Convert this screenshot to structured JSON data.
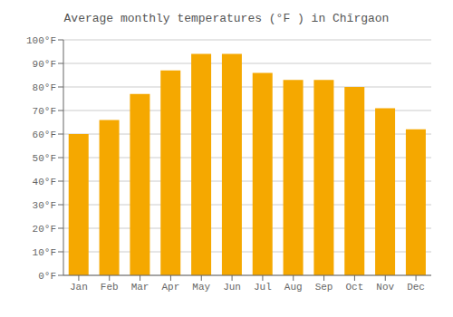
{
  "chart_data": {
    "type": "bar",
    "title": "Average monthly temperatures (°F ) in Chīrgaon",
    "categories": [
      "Jan",
      "Feb",
      "Mar",
      "Apr",
      "May",
      "Jun",
      "Jul",
      "Aug",
      "Sep",
      "Oct",
      "Nov",
      "Dec"
    ],
    "values": [
      60,
      66,
      77,
      87,
      94,
      94,
      86,
      83,
      83,
      80,
      71,
      62
    ],
    "color": "#F5A800",
    "ylim": [
      0,
      100
    ],
    "yticks": [
      {
        "value": 0,
        "label": "0°F"
      },
      {
        "value": 10,
        "label": "10°F"
      },
      {
        "value": 20,
        "label": "20°F"
      },
      {
        "value": 30,
        "label": "30°F"
      },
      {
        "value": 40,
        "label": "40°F"
      },
      {
        "value": 50,
        "label": "50°F"
      },
      {
        "value": 60,
        "label": "60°F"
      },
      {
        "value": 70,
        "label": "70°F"
      },
      {
        "value": 80,
        "label": "80°F"
      },
      {
        "value": 90,
        "label": "90°F"
      },
      {
        "value": 100,
        "label": "100°F"
      }
    ],
    "grid": true
  }
}
